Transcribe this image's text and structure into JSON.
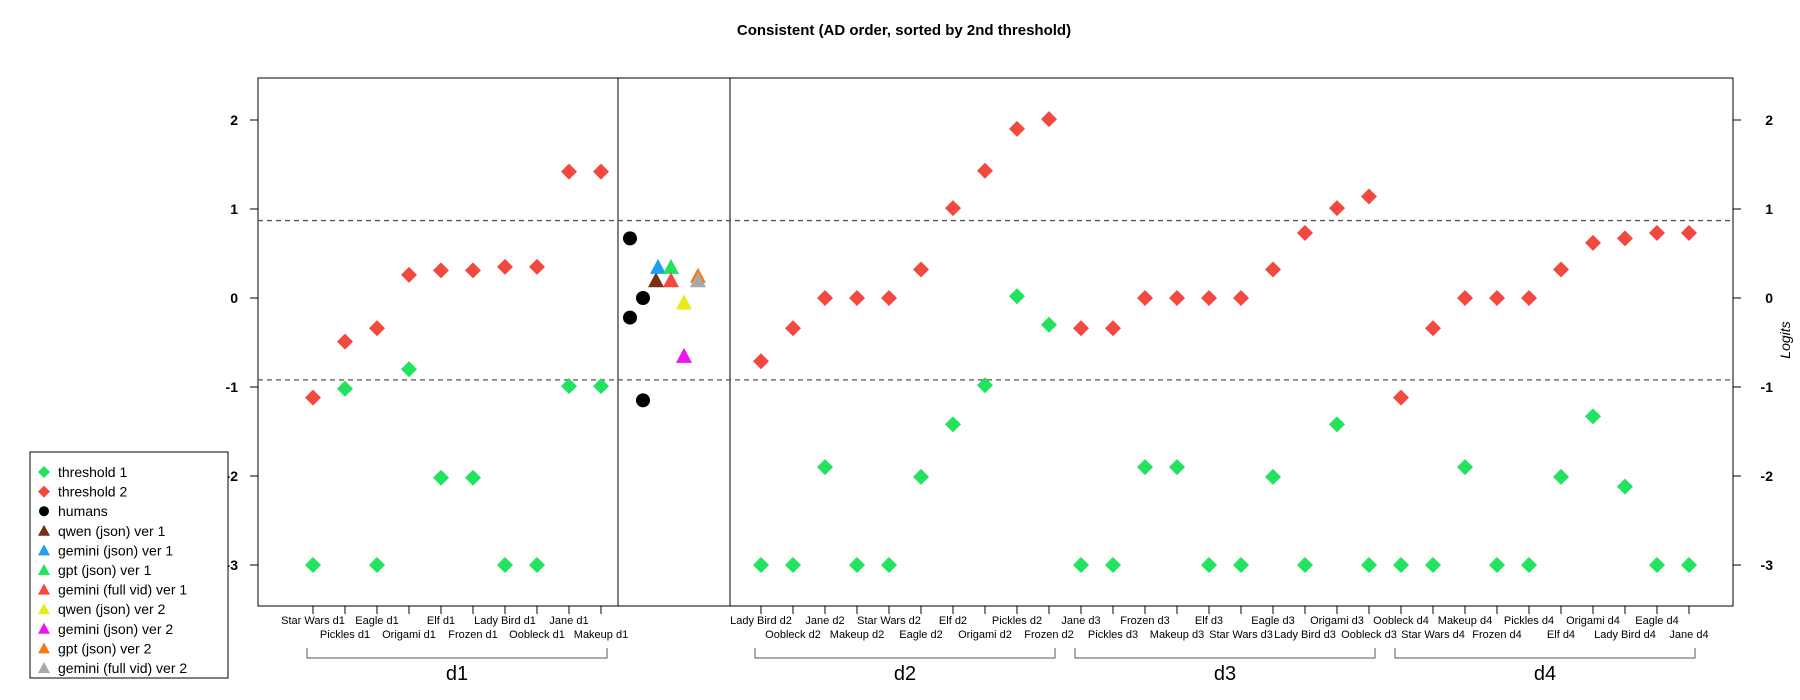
{
  "chart_data": {
    "type": "scatter",
    "title": "Consistent (AD order, sorted by 2nd threshold)",
    "ylabel_right": "Logits",
    "ylim": [
      -3.3,
      2.5
    ],
    "yticks": [
      -3,
      -2,
      -1,
      0,
      1,
      2
    ],
    "reference_lines": [
      0.87,
      -0.92
    ],
    "colors": {
      "threshold1": "#21e35e",
      "threshold2": "#f2493e",
      "humans": "#000000",
      "qwen_v1": "#7b2f12",
      "gemini_json_v1": "#1ea0f0",
      "gpt_json_v1": "#21e35e",
      "gemini_full_v1": "#f2493e",
      "qwen_v2": "#e8ec16",
      "gemini_json_v2": "#ec16ec",
      "gpt_json_v2": "#f57a17",
      "gemini_full_v2": "#a8a8a8"
    },
    "legend": [
      {
        "label": "threshold 1",
        "shape": "diamond",
        "color": "#21e35e"
      },
      {
        "label": "threshold 2",
        "shape": "diamond",
        "color": "#f2493e"
      },
      {
        "label": "humans",
        "shape": "circle",
        "color": "#000000"
      },
      {
        "label": "qwen (json) ver 1",
        "shape": "triangle",
        "color": "#7b2f12"
      },
      {
        "label": "gemini (json) ver 1",
        "shape": "triangle",
        "color": "#1ea0f0"
      },
      {
        "label": "gpt (json) ver 1",
        "shape": "triangle",
        "color": "#21e35e"
      },
      {
        "label": "gemini (full vid) ver 1",
        "shape": "triangle",
        "color": "#f2493e"
      },
      {
        "label": "qwen (json) ver 2",
        "shape": "triangle",
        "color": "#e8ec16"
      },
      {
        "label": "gemini (json) ver 2",
        "shape": "triangle",
        "color": "#ec16ec"
      },
      {
        "label": "gpt (json) ver 2",
        "shape": "triangle",
        "color": "#f57a17"
      },
      {
        "label": "gemini (full vid) ver 2",
        "shape": "triangle",
        "color": "#a8a8a8"
      }
    ],
    "groups": [
      {
        "name": "d1",
        "items": [
          {
            "label": "Star Wars d1",
            "t1": -3.0,
            "t2": -1.12
          },
          {
            "label": "Pickles d1",
            "t1": -1.02,
            "t2": -0.49
          },
          {
            "label": "Eagle d1",
            "t1": -3.0,
            "t2": -0.34
          },
          {
            "label": "Origami d1",
            "t1": -0.8,
            "t2": 0.26
          },
          {
            "label": "Elf d1",
            "t1": -2.02,
            "t2": 0.31
          },
          {
            "label": "Frozen d1",
            "t1": -2.02,
            "t2": 0.31
          },
          {
            "label": "Lady Bird d1",
            "t1": -3.0,
            "t2": 0.35
          },
          {
            "label": "Oobleck d1",
            "t1": -3.0,
            "t2": 0.35
          },
          {
            "label": "Jane d1",
            "t1": -0.99,
            "t2": 1.42
          },
          {
            "label": "Makeup d1",
            "t1": -0.99,
            "t2": 1.42
          }
        ]
      },
      {
        "name": "d2",
        "items": [
          {
            "label": "Lady Bird d2",
            "t1": -3.0,
            "t2": -0.71
          },
          {
            "label": "Oobleck d2",
            "t1": -3.0,
            "t2": -0.34
          },
          {
            "label": "Jane d2",
            "t1": -1.9,
            "t2": 0.0
          },
          {
            "label": "Makeup d2",
            "t1": -3.0,
            "t2": 0.0
          },
          {
            "label": "Star Wars d2",
            "t1": -3.0,
            "t2": 0.0
          },
          {
            "label": "Eagle d2",
            "t1": -2.01,
            "t2": 0.32
          },
          {
            "label": "Elf d2",
            "t1": -1.42,
            "t2": 1.01
          },
          {
            "label": "Origami d2",
            "t1": -0.98,
            "t2": 1.43
          },
          {
            "label": "Pickles d2",
            "t1": 0.02,
            "t2": 1.9
          },
          {
            "label": "Frozen d2",
            "t1": -0.3,
            "t2": 2.01
          }
        ]
      },
      {
        "name": "d3",
        "items": [
          {
            "label": "Jane d3",
            "t1": -3.0,
            "t2": -0.34
          },
          {
            "label": "Pickles d3",
            "t1": -3.0,
            "t2": -0.34
          },
          {
            "label": "Frozen d3",
            "t1": -1.9,
            "t2": 0.0
          },
          {
            "label": "Makeup d3",
            "t1": -1.9,
            "t2": 0.0
          },
          {
            "label": "Elf d3",
            "t1": -3.0,
            "t2": 0.0
          },
          {
            "label": "Star Wars d3",
            "t1": -3.0,
            "t2": 0.0
          },
          {
            "label": "Eagle d3",
            "t1": -2.01,
            "t2": 0.32
          },
          {
            "label": "Lady Bird d3",
            "t1": -3.0,
            "t2": 0.73
          },
          {
            "label": "Origami d3",
            "t1": -1.42,
            "t2": 1.01
          },
          {
            "label": "Oobleck d3",
            "t1": -3.0,
            "t2": 1.14
          }
        ]
      },
      {
        "name": "d4",
        "items": [
          {
            "label": "Oobleck d4",
            "t1": -3.0,
            "t2": -1.12
          },
          {
            "label": "Star Wars d4",
            "t1": -3.0,
            "t2": -0.34
          },
          {
            "label": "Makeup d4",
            "t1": -1.9,
            "t2": 0.0
          },
          {
            "label": "Frozen d4",
            "t1": -3.0,
            "t2": 0.0
          },
          {
            "label": "Pickles d4",
            "t1": -3.0,
            "t2": 0.0
          },
          {
            "label": "Elf d4",
            "t1": -2.01,
            "t2": 0.32
          },
          {
            "label": "Origami d4",
            "t1": -1.33,
            "t2": 0.62
          },
          {
            "label": "Lady Bird d4",
            "t1": -2.12,
            "t2": 0.67
          },
          {
            "label": "Eagle d4",
            "t1": -3.0,
            "t2": 0.73
          },
          {
            "label": "Jane d4",
            "t1": -3.0,
            "t2": 0.73
          }
        ]
      }
    ],
    "middle_panel": {
      "humans": [
        0.67,
        -0.22,
        0.0,
        -1.15
      ],
      "models": [
        {
          "name": "qwen (json) ver 1",
          "value": 0.2
        },
        {
          "name": "gemini (json) ver 1",
          "value": 0.35
        },
        {
          "name": "gpt (json) ver 1",
          "value": 0.35
        },
        {
          "name": "gemini (full vid) ver 1",
          "value": 0.2
        },
        {
          "name": "qwen (json) ver 2",
          "value": -0.05
        },
        {
          "name": "gemini (json) ver 2",
          "value": -0.65
        },
        {
          "name": "gpt (json) ver 2",
          "value": 0.25
        },
        {
          "name": "gemini (full vid) ver 2",
          "value": 0.2
        }
      ]
    }
  }
}
